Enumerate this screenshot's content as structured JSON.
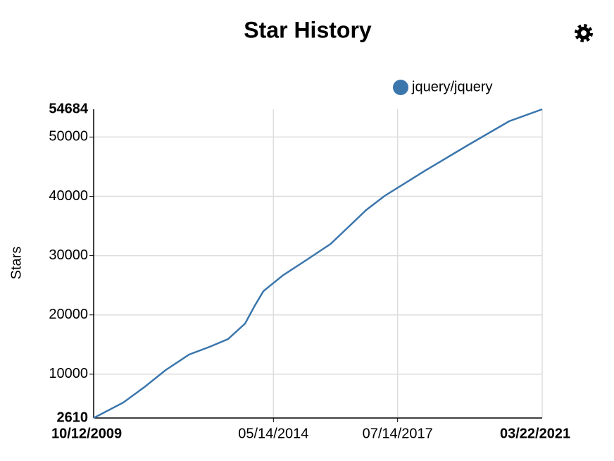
{
  "chart_data": {
    "type": "line",
    "title": "Star History",
    "y_label": "Stars",
    "x": [
      "10/12/2009",
      "07/16/2010",
      "01/29/2011",
      "08/14/2011",
      "03/19/2012",
      "09/27/2012",
      "03/17/2013",
      "08/23/2013",
      "11/16/2013",
      "02/10/2014",
      "08/07/2014",
      "03/26/2015",
      "10/29/2015",
      "04/05/2016",
      "09/24/2016",
      "03/14/2017",
      "03/18/2018",
      "04/18/2019",
      "05/18/2020",
      "03/22/2021"
    ],
    "series": [
      {
        "name": "jquery/jquery",
        "color": "#3b76ad",
        "values": [
          2610,
          5226,
          7841,
          10695,
          13310,
          14618,
          15926,
          18541,
          21395,
          24010,
          26626,
          29360,
          31976,
          34711,
          37683,
          40061,
          44222,
          48503,
          52664,
          54684
        ]
      }
    ],
    "xlim": [
      "10/12/2009",
      "03/22/2021"
    ],
    "xticks": [
      "05/14/2014",
      "07/14/2017"
    ],
    "ylim": [
      2610,
      54684
    ],
    "yticks": [
      10000,
      20000,
      30000,
      40000,
      50000
    ],
    "grid": true,
    "legend": "top-right"
  }
}
